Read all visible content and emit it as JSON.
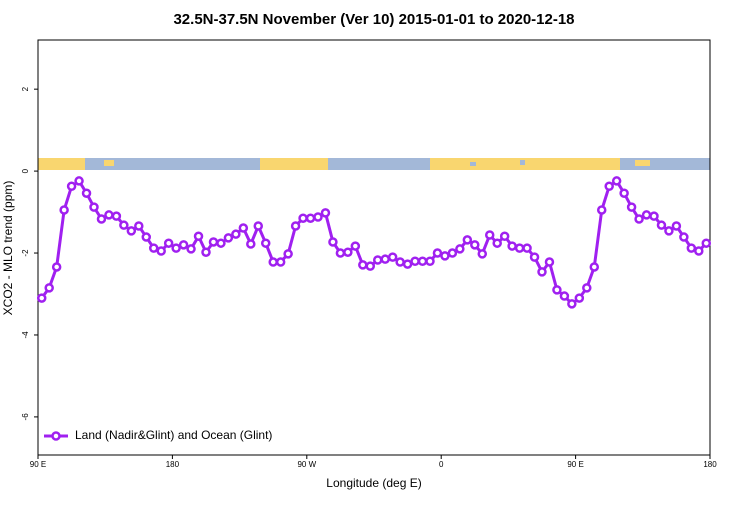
{
  "chart_data": {
    "type": "line",
    "title": "32.5N-37.5N November (Ver 10)   2015-01-01 to 2020-12-18",
    "xlabel": "Longitude (deg E)",
    "ylabel": "XCO2 - MLO trend (ppm)",
    "x": [
      92.5,
      97.5,
      102.5,
      107.5,
      112.5,
      117.5,
      122.5,
      127.5,
      132.5,
      137.5,
      142.5,
      147.5,
      152.5,
      157.5,
      162.5,
      167.5,
      172.5,
      177.5,
      182.5,
      187.5,
      192.5,
      197.5,
      202.5,
      207.5,
      212.5,
      217.5,
      222.5,
      227.5,
      232.5,
      237.5,
      242.5,
      247.5,
      252.5,
      257.5,
      262.5,
      267.5,
      272.5,
      277.5,
      282.5,
      287.5,
      292.5,
      297.5,
      302.5,
      307.5,
      312.5,
      317.5,
      322.5,
      327.5,
      332.5,
      337.5,
      342.5,
      347.5,
      352.5,
      357.5,
      362.5,
      367.5,
      372.5,
      377.5,
      382.5,
      387.5,
      392.5,
      397.5,
      402.5,
      407.5,
      412.5,
      417.5,
      422.5,
      427.5,
      432.5,
      437.5,
      442.5,
      447.5,
      452.5,
      457.5,
      462.5,
      467.5,
      472.5,
      477.5,
      482.5,
      487.5,
      492.5,
      497.5,
      502.5,
      507.5,
      512.5,
      517.5,
      522.5,
      527.5,
      532.5,
      537.5
    ],
    "series": [
      {
        "name": "Land (Nadir&Glint) and Ocean (Glint)",
        "color": "#a020f0",
        "values": [
          -3.1,
          -2.85,
          -2.34,
          -0.95,
          -0.37,
          -0.24,
          -0.54,
          -0.88,
          -1.17,
          -1.07,
          -1.1,
          -1.32,
          -1.46,
          -1.34,
          -1.61,
          -1.88,
          -1.95,
          -1.76,
          -1.88,
          -1.8,
          -1.9,
          -1.59,
          -1.98,
          -1.73,
          -1.76,
          -1.63,
          -1.54,
          -1.39,
          -1.78,
          -1.34,
          -1.76,
          -2.22,
          -2.22,
          -2.02,
          -1.34,
          -1.15,
          -1.15,
          -1.12,
          -1.02,
          -1.73,
          -2.0,
          -1.98,
          -1.83,
          -2.29,
          -2.32,
          -2.17,
          -2.15,
          -2.1,
          -2.22,
          -2.27,
          -2.2,
          -2.2,
          -2.2,
          -2.0,
          -2.07,
          -2.0,
          -1.9,
          -1.68,
          -1.8,
          -2.02,
          -1.56,
          -1.76,
          -1.59,
          -1.83,
          -1.88,
          -1.88,
          -2.1,
          -2.46,
          -2.22,
          -2.9,
          -3.05,
          -3.24,
          -3.1,
          -2.85,
          -2.34,
          -0.95,
          -0.37,
          -0.24,
          -0.54,
          -0.88,
          -1.17,
          -1.07,
          -1.1,
          -1.32,
          -1.46,
          -1.34,
          -1.61,
          -1.88,
          -1.95,
          -1.76
        ]
      }
    ],
    "xlim": [
      90,
      540
    ],
    "xticks": [
      {
        "value": 90,
        "label": "90 E"
      },
      180,
      {
        "value": 270,
        "label": "90 W"
      },
      {
        "value": 360,
        "label": "0"
      },
      {
        "value": 450,
        "label": "90 E"
      },
      {
        "value": 540,
        "label": "180"
      }
    ],
    "ylim": [
      -6.93,
      3.2
    ],
    "yticks": [
      -6,
      -4,
      -2,
      0,
      2
    ],
    "legend": "bottomleft"
  }
}
